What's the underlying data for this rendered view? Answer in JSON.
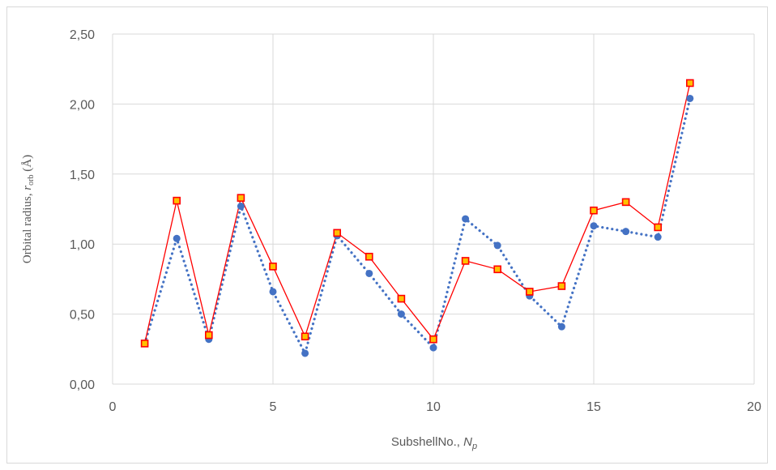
{
  "chart_data": {
    "type": "line",
    "xlabel": "SubshellNo., N",
    "xlabel_main": "SubshellNo., ",
    "xlabel_var": "N",
    "xlabel_sub": "p",
    "ylabel": "Orbital radius, r_orb (Å)",
    "ylabel_main": "Orbital radius, ",
    "ylabel_var": "r",
    "ylabel_sub": "orb",
    "ylabel_unit": " (Å)",
    "xlim": [
      0,
      20
    ],
    "ylim": [
      0,
      2.5
    ],
    "x_ticks": [
      "0",
      "5",
      "10",
      "15",
      "20"
    ],
    "y_ticks": [
      "0,00",
      "0,50",
      "1,00",
      "1,50",
      "2,00",
      "2,50"
    ],
    "grid": true,
    "legend": "none",
    "series": [
      {
        "style": "dotted",
        "marker": "circle",
        "color": "#4472c4",
        "x": [
          1,
          2,
          3,
          4,
          5,
          6,
          7,
          8,
          9,
          10,
          11,
          12,
          13,
          14,
          15,
          16,
          17,
          18
        ],
        "values": [
          0.29,
          1.04,
          0.32,
          1.27,
          0.66,
          0.22,
          1.06,
          0.79,
          0.5,
          0.26,
          1.18,
          0.99,
          0.63,
          0.41,
          1.13,
          1.09,
          1.05,
          2.04
        ]
      },
      {
        "style": "solid",
        "marker": "square",
        "color": "#ff0000",
        "marker_fill": "#ffc000",
        "x": [
          1,
          2,
          3,
          4,
          5,
          6,
          7,
          8,
          9,
          10,
          11,
          12,
          13,
          14,
          15,
          16,
          17,
          18
        ],
        "values": [
          0.29,
          1.31,
          0.35,
          1.33,
          0.84,
          0.34,
          1.08,
          0.91,
          0.61,
          0.32,
          0.88,
          0.82,
          0.66,
          0.7,
          1.24,
          1.3,
          1.12,
          2.15
        ]
      }
    ]
  }
}
